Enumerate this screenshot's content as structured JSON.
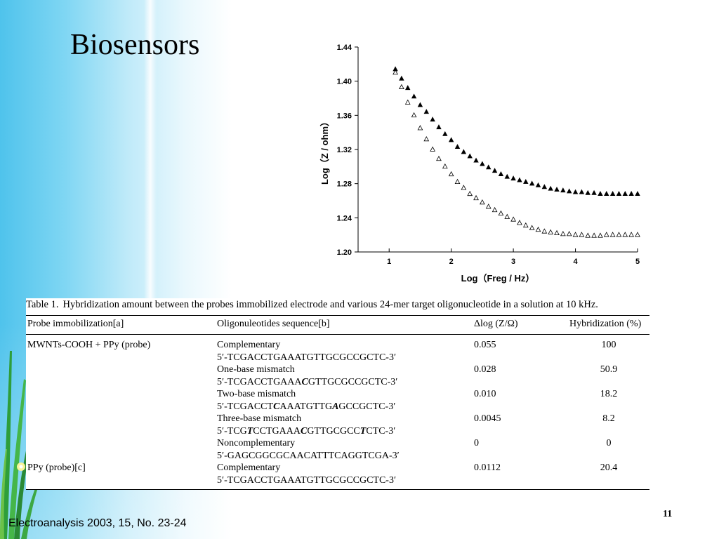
{
  "slide": {
    "title": "Biosensors",
    "citation": "Electroanalysis 2003, 15, No. 23-24",
    "page_number": "11"
  },
  "chart_data": {
    "type": "scatter",
    "title": "",
    "xlabel": "Log（Freg / Hz）",
    "ylabel": "Log（Z / ohm）",
    "xlim": [
      0.5,
      5.0
    ],
    "ylim": [
      1.2,
      1.44
    ],
    "xticks": [
      1,
      2,
      3,
      4,
      5
    ],
    "yticks": [
      1.2,
      1.24,
      1.28,
      1.32,
      1.36,
      1.4,
      1.44
    ],
    "ytick_labels": [
      "1.20",
      "1.24",
      "1.28",
      "1.32",
      "1.36",
      "1.40",
      "1.44"
    ],
    "grid": false,
    "legend": "none",
    "series": [
      {
        "marker": "filled-triangle",
        "color": "#000000",
        "x": [
          1.1,
          1.2,
          1.3,
          1.4,
          1.5,
          1.6,
          1.7,
          1.8,
          1.9,
          2.0,
          2.1,
          2.2,
          2.3,
          2.4,
          2.5,
          2.6,
          2.7,
          2.8,
          2.9,
          3.0,
          3.1,
          3.2,
          3.3,
          3.4,
          3.5,
          3.6,
          3.7,
          3.8,
          3.9,
          4.0,
          4.1,
          4.2,
          4.3,
          4.4,
          4.5,
          4.6,
          4.7,
          4.8,
          4.9,
          5.0
        ],
        "y": [
          1.414,
          1.403,
          1.392,
          1.382,
          1.372,
          1.364,
          1.355,
          1.346,
          1.338,
          1.331,
          1.323,
          1.317,
          1.312,
          1.307,
          1.303,
          1.299,
          1.295,
          1.291,
          1.288,
          1.286,
          1.284,
          1.282,
          1.28,
          1.278,
          1.276,
          1.274,
          1.273,
          1.272,
          1.271,
          1.27,
          1.27,
          1.269,
          1.269,
          1.268,
          1.268,
          1.268,
          1.268,
          1.268,
          1.268,
          1.268
        ]
      },
      {
        "marker": "open-triangle",
        "color": "#000000",
        "x": [
          1.1,
          1.2,
          1.3,
          1.4,
          1.5,
          1.6,
          1.7,
          1.8,
          1.9,
          2.0,
          2.1,
          2.2,
          2.3,
          2.4,
          2.5,
          2.6,
          2.7,
          2.8,
          2.9,
          3.0,
          3.1,
          3.2,
          3.3,
          3.4,
          3.5,
          3.6,
          3.7,
          3.8,
          3.9,
          4.0,
          4.1,
          4.2,
          4.3,
          4.4,
          4.5,
          4.6,
          4.7,
          4.8,
          4.9,
          5.0
        ],
        "y": [
          1.41,
          1.393,
          1.375,
          1.36,
          1.345,
          1.332,
          1.32,
          1.309,
          1.3,
          1.291,
          1.282,
          1.275,
          1.268,
          1.263,
          1.258,
          1.253,
          1.249,
          1.245,
          1.241,
          1.238,
          1.234,
          1.231,
          1.228,
          1.226,
          1.224,
          1.223,
          1.222,
          1.221,
          1.221,
          1.22,
          1.22,
          1.219,
          1.219,
          1.219,
          1.22,
          1.22,
          1.22,
          1.22,
          1.22,
          1.22
        ]
      }
    ]
  },
  "table": {
    "label": "Table 1.",
    "caption": "Hybridization amount between the probes immobilized electrode and various 24-mer target oligonucleotide in a solution at 10 kHz.",
    "headers": {
      "probe": "Probe immobilization[a]",
      "sequence": "Oligonuleotides sequence[b]",
      "delta": "Δlog (Z/Ω)",
      "hybridization": "Hybridization (%)"
    },
    "rows": [
      {
        "probe": "MWNTs-COOH + PPy (probe)",
        "name": "Complementary",
        "seq_parts": [
          "5′-TCGACCTGAAATGTTGCGCCGCTC-3′"
        ],
        "delta": "0.055",
        "hyb": "100"
      },
      {
        "probe": "",
        "name": "One-base mismatch",
        "seq_parts": [
          "5′-TCGACCTGAAA",
          "C",
          "GTTGCGCCGCTC-3′"
        ],
        "delta": "0.028",
        "hyb": "50.9"
      },
      {
        "probe": "",
        "name": "Two-base mismatch",
        "seq_parts": [
          "5′-TCGACCT",
          "C",
          "AAATGTTG",
          "A",
          "GCCGCTC-3′"
        ],
        "delta": "0.010",
        "hyb": "18.2"
      },
      {
        "probe": "",
        "name": "Three-base mismatch",
        "seq_parts": [
          "5′-TCG",
          "T",
          "CCTGAAA",
          "C",
          "GTTGCGCC",
          "T",
          "CTC-3′"
        ],
        "delta": "0.0045",
        "hyb": "8.2"
      },
      {
        "probe": "",
        "name": "Noncomplementary",
        "seq_parts": [
          "5′-GAGCGGCGCAACATTTCAGGTCGA-3′"
        ],
        "delta": "0",
        "hyb": "0"
      },
      {
        "probe": "PPy (probe)[c]",
        "name": "Complementary",
        "seq_parts": [
          "5′-TCGACCTGAAATGTTGCGCCGCTC-3′"
        ],
        "delta": "0.0112",
        "hyb": "20.4"
      }
    ]
  }
}
